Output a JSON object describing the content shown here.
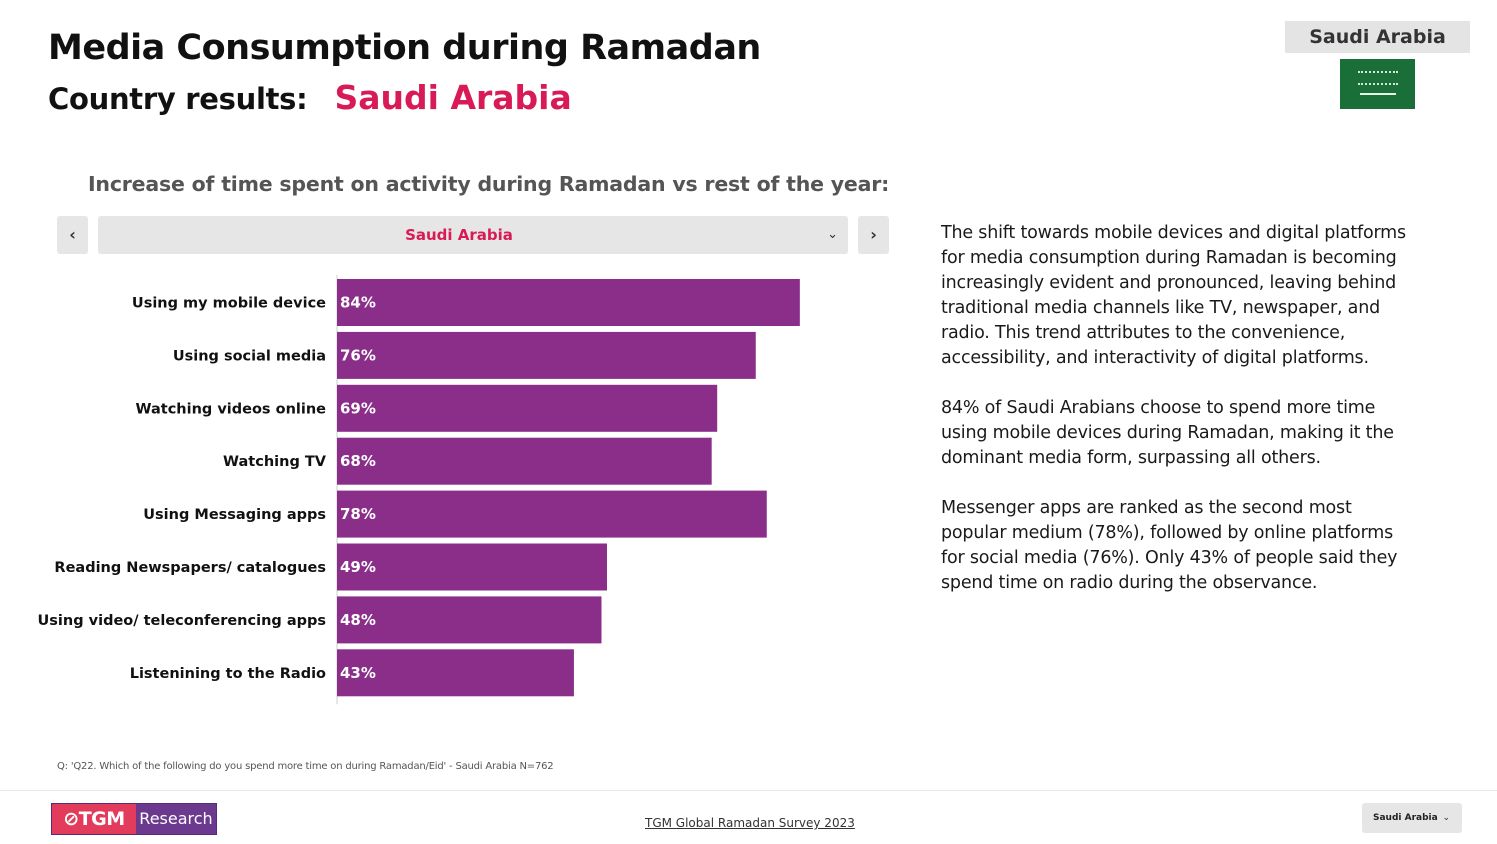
{
  "header": {
    "title": "Media Consumption during Ramadan",
    "subtitle_label": "Country results:",
    "subtitle_country": "Saudi Arabia",
    "country_badge": "Saudi Arabia",
    "flag_icon": "saudi-arabia-flag-icon"
  },
  "selector": {
    "prev_glyph": "‹",
    "next_glyph": "›",
    "value": "Saudi Arabia",
    "caret_glyph": "⌄"
  },
  "chart_data": {
    "type": "bar",
    "orientation": "horizontal",
    "title": "Increase of time spent on activity during Ramadan vs rest of the year:",
    "categories": [
      "Using my mobile device",
      "Using social media",
      "Watching videos online",
      "Watching TV",
      "Using Messaging apps",
      "Reading Newspapers/ catalogues",
      "Using video/ teleconferencing apps",
      "Listenining to the Radio"
    ],
    "values": [
      84,
      76,
      69,
      68,
      78,
      49,
      48,
      43
    ],
    "value_labels": [
      "84%",
      "76%",
      "69%",
      "68%",
      "78%",
      "49%",
      "48%",
      "43%"
    ],
    "unit": "%",
    "xlim": [
      0,
      100
    ],
    "grid": false,
    "legend": "none",
    "bar_color": "#8a2e8a"
  },
  "summary": {
    "paragraphs": [
      "The shift towards mobile devices and digital platforms for media consumption during Ramadan is becoming increasingly evident and pronounced, leaving behind traditional media channels like TV, newspaper, and radio. This trend attributes to the convenience, accessibility, and interactivity of digital platforms.",
      "84% of Saudi Arabians choose to spend more time using mobile devices during Ramadan, making it the dominant media form, surpassing all others.",
      "Messenger apps are ranked as the second most popular medium (78%), followed by online platforms for social media (76%). Only 43% of people said they spend time on radio during the observance."
    ]
  },
  "source_note": "Q: 'Q22. Which of the following do you spend more time on during Ramadan/Eid' - Saudi Arabia N=762",
  "footer": {
    "logo_left": "⊘TGM",
    "logo_right": "Research",
    "link_text": "TGM Global Ramadan Survey 2023",
    "select_value": "Saudi Arabia",
    "select_caret": "⌄"
  }
}
